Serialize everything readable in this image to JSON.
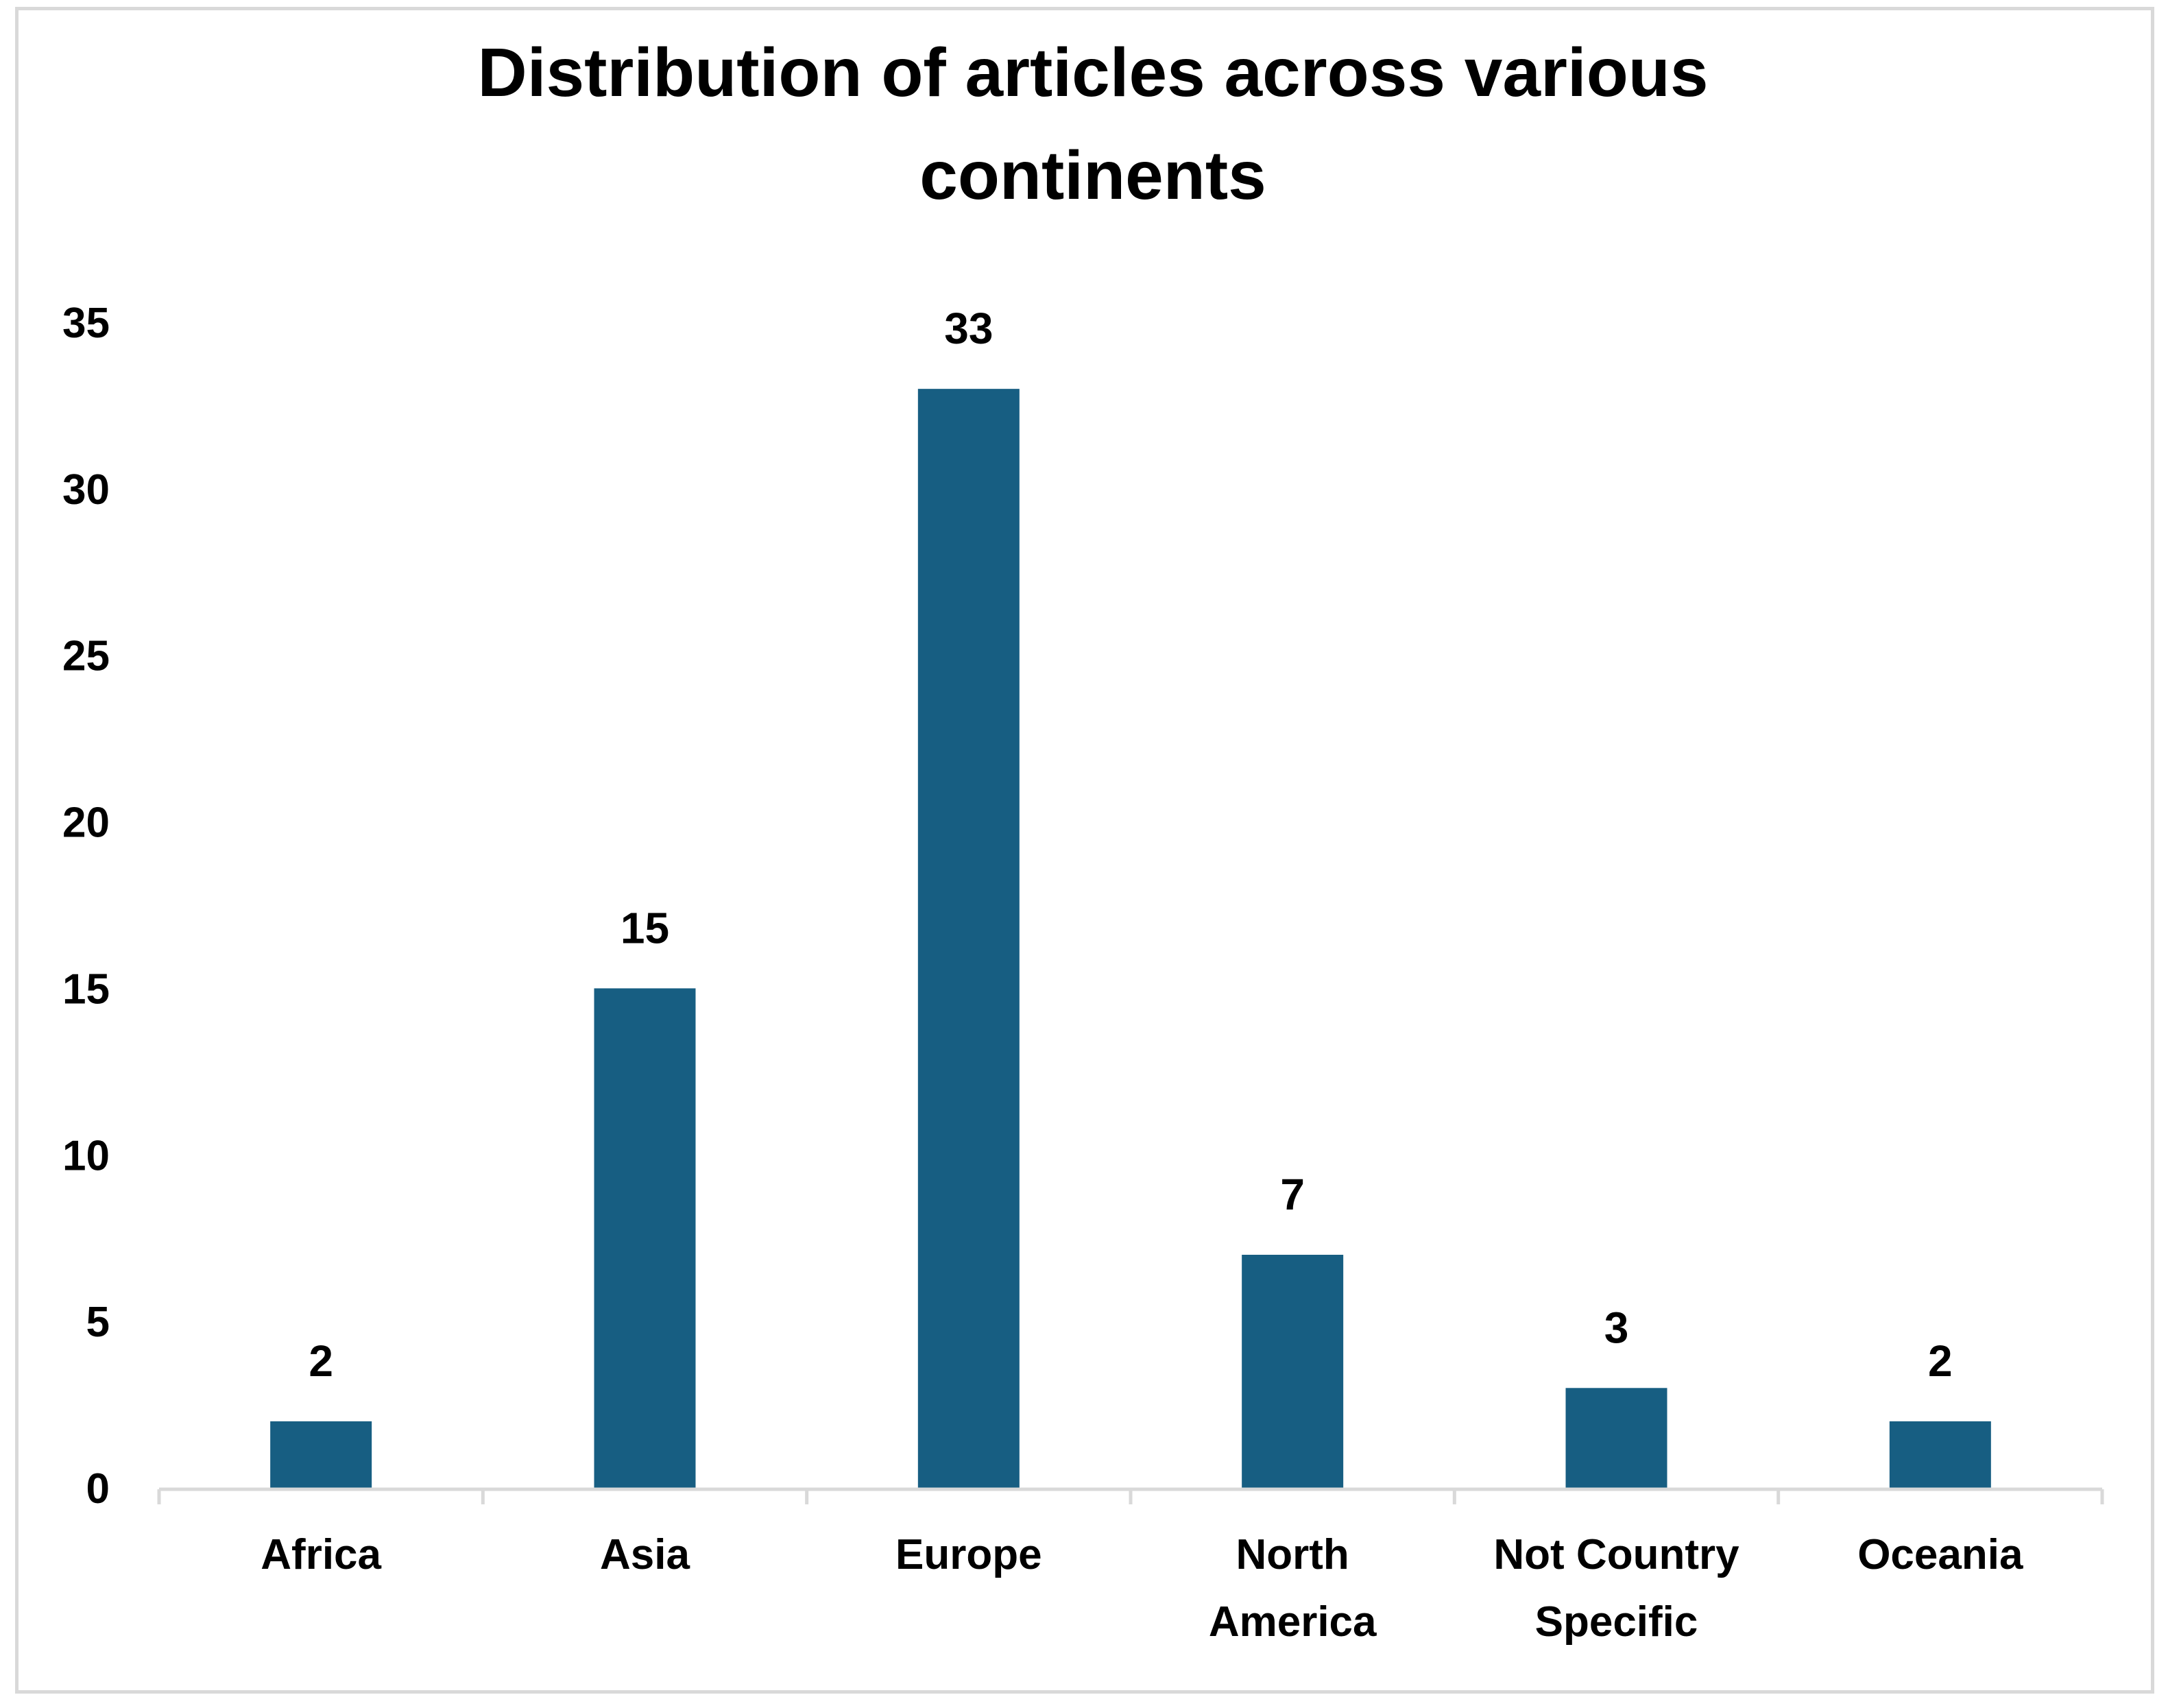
{
  "chart_data": {
    "type": "bar",
    "title_lines": [
      "Distribution of articles across various",
      "continents"
    ],
    "categories": [
      [
        "Africa"
      ],
      [
        "Asia"
      ],
      [
        "Europe"
      ],
      [
        "North",
        "America"
      ],
      [
        "Not Country",
        "Specific"
      ],
      [
        "Oceania"
      ]
    ],
    "values": [
      2,
      15,
      33,
      7,
      3,
      2
    ],
    "data_labels": [
      "2",
      "15",
      "33",
      "7",
      "3",
      "2"
    ],
    "yticks": [
      "0",
      "5",
      "10",
      "15",
      "20",
      "25",
      "30",
      "35"
    ],
    "ylim": [
      0,
      35
    ],
    "xlabel": "",
    "ylabel": "",
    "grid": false,
    "legend": "none",
    "bar_color": "#175e82",
    "axis_color": "#d9d9d9"
  }
}
